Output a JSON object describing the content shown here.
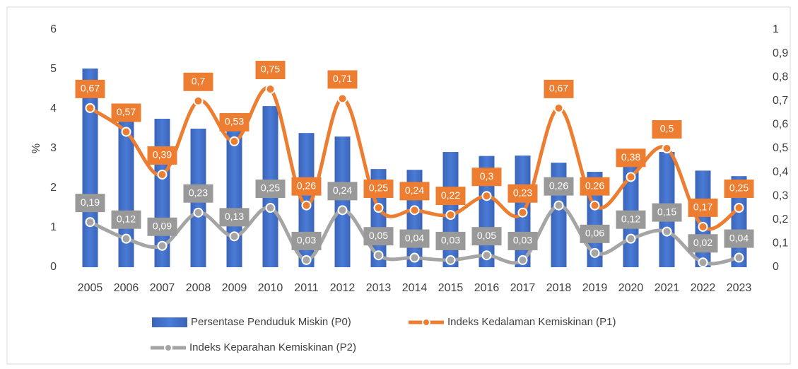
{
  "chart_data": {
    "type": "bar",
    "y_label": "%",
    "categories": [
      "2005",
      "2006",
      "2007",
      "2008",
      "2009",
      "2010",
      "2011",
      "2012",
      "2013",
      "2014",
      "2015",
      "2016",
      "2017",
      "2018",
      "2019",
      "2020",
      "2021",
      "2022",
      "2023"
    ],
    "ylim": [
      0,
      6
    ],
    "yticks": [
      0,
      1,
      2,
      3,
      4,
      5,
      6
    ],
    "y2lim": [
      0,
      1
    ],
    "y2ticks": [
      0,
      {
        "value": 0.1,
        "label": "0,1"
      },
      {
        "value": 0.2,
        "label": "0,2"
      },
      {
        "value": 0.3,
        "label": "0,3"
      },
      {
        "value": 0.4,
        "label": "0,4"
      },
      {
        "value": 0.5,
        "label": "0,5"
      },
      {
        "value": 0.6,
        "label": "0,6"
      },
      {
        "value": 0.7,
        "label": "0,7"
      },
      {
        "value": 0.8,
        "label": "0,8"
      },
      {
        "value": 0.9,
        "label": "0,9"
      },
      1
    ],
    "series": [
      {
        "name": "Persentase Penduduk Miskin (P0)",
        "type": "bar",
        "color": "#4472c4",
        "values": [
          5.02,
          3.85,
          3.75,
          3.5,
          3.5,
          4.07,
          3.39,
          3.3,
          2.48,
          2.46,
          2.91,
          2.81,
          2.82,
          2.64,
          2.41,
          2.6,
          2.91,
          2.44,
          2.3
        ]
      },
      {
        "name": "Indeks Kedalaman Kemiskinan (P1)",
        "type": "line",
        "axis": "y2",
        "color": "#ed7d31",
        "values": [
          0.67,
          0.57,
          0.39,
          0.7,
          0.53,
          0.75,
          0.26,
          0.71,
          0.25,
          0.24,
          0.22,
          0.3,
          0.23,
          0.67,
          0.26,
          0.38,
          0.5,
          0.17,
          0.25
        ],
        "value_labels": [
          "0,67",
          "0,57",
          "0,39",
          "0,7",
          "0,53",
          "0,75",
          "0,26",
          "0,71",
          "0,25",
          "0,24",
          "0,22",
          "0,3",
          "0,23",
          "0,67",
          "0,26",
          "0,38",
          "0,5",
          "0,17",
          "0,25"
        ]
      },
      {
        "name": "Indeks Keparahan Kemiskinan (P2)",
        "type": "line",
        "axis": "y2",
        "color": "#a5a5a5",
        "values": [
          0.19,
          0.12,
          0.09,
          0.23,
          0.13,
          0.25,
          0.03,
          0.24,
          0.05,
          0.04,
          0.03,
          0.05,
          0.03,
          0.26,
          0.06,
          0.12,
          0.15,
          0.02,
          0.04
        ],
        "value_labels": [
          "0,19",
          "0,12",
          "0,09",
          "0,23",
          "0,13",
          "0,25",
          "0,03",
          "0,24",
          "0,05",
          "0,04",
          "0,03",
          "0,05",
          "0,03",
          "0,26",
          "0,06",
          "0,12",
          "0,15",
          "0,02",
          "0,04"
        ]
      }
    ]
  }
}
